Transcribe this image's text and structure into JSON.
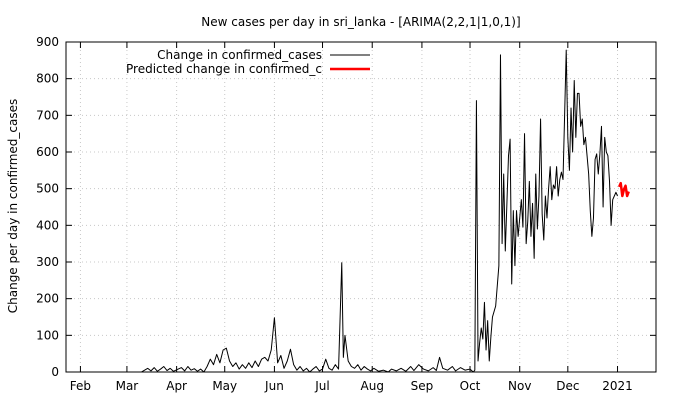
{
  "chart_data": {
    "type": "line",
    "title": "New cases per day in sri_lanka -  [ARIMA(2,2,1|1,0,1)]",
    "xlabel": "",
    "ylabel": "Change per day in confirmed_cases",
    "ylim": [
      0,
      900
    ],
    "yticks": [
      0,
      100,
      200,
      300,
      400,
      500,
      600,
      700,
      800,
      900
    ],
    "xlim": [
      "2020-01-23",
      "2021-01-25"
    ],
    "xticks": [
      {
        "label": "Feb",
        "date": "2020-02-01"
      },
      {
        "label": "Mar",
        "date": "2020-03-01"
      },
      {
        "label": "Apr",
        "date": "2020-04-01"
      },
      {
        "label": "May",
        "date": "2020-05-01"
      },
      {
        "label": "Jun",
        "date": "2020-06-01"
      },
      {
        "label": "Jul",
        "date": "2020-07-01"
      },
      {
        "label": "Aug",
        "date": "2020-08-01"
      },
      {
        "label": "Sep",
        "date": "2020-09-01"
      },
      {
        "label": "Oct",
        "date": "2020-10-01"
      },
      {
        "label": "Nov",
        "date": "2020-11-01"
      },
      {
        "label": "Dec",
        "date": "2020-12-01"
      },
      {
        "label": "2021",
        "date": "2021-01-01"
      }
    ],
    "grid": true,
    "legend_position": "top-left",
    "series": [
      {
        "name": "Change in confirmed_cases",
        "color": "#000000",
        "points": [
          [
            "2020-01-23",
            0
          ],
          [
            "2020-03-10",
            0
          ],
          [
            "2020-03-12",
            5
          ],
          [
            "2020-03-14",
            10
          ],
          [
            "2020-03-16",
            3
          ],
          [
            "2020-03-18",
            12
          ],
          [
            "2020-03-20",
            2
          ],
          [
            "2020-03-22",
            8
          ],
          [
            "2020-03-24",
            15
          ],
          [
            "2020-03-26",
            4
          ],
          [
            "2020-03-28",
            10
          ],
          [
            "2020-03-30",
            2
          ],
          [
            "2020-04-01",
            6
          ],
          [
            "2020-04-04",
            12
          ],
          [
            "2020-04-06",
            3
          ],
          [
            "2020-04-08",
            15
          ],
          [
            "2020-04-10",
            5
          ],
          [
            "2020-04-12",
            9
          ],
          [
            "2020-04-14",
            2
          ],
          [
            "2020-04-16",
            8
          ],
          [
            "2020-04-18",
            0
          ],
          [
            "2020-04-20",
            15
          ],
          [
            "2020-04-22",
            35
          ],
          [
            "2020-04-24",
            20
          ],
          [
            "2020-04-26",
            48
          ],
          [
            "2020-04-28",
            25
          ],
          [
            "2020-04-30",
            60
          ],
          [
            "2020-05-02",
            65
          ],
          [
            "2020-05-04",
            30
          ],
          [
            "2020-05-06",
            15
          ],
          [
            "2020-05-08",
            25
          ],
          [
            "2020-05-10",
            8
          ],
          [
            "2020-05-12",
            20
          ],
          [
            "2020-05-14",
            10
          ],
          [
            "2020-05-16",
            25
          ],
          [
            "2020-05-18",
            12
          ],
          [
            "2020-05-20",
            30
          ],
          [
            "2020-05-22",
            15
          ],
          [
            "2020-05-24",
            35
          ],
          [
            "2020-05-26",
            40
          ],
          [
            "2020-05-28",
            30
          ],
          [
            "2020-05-30",
            60
          ],
          [
            "2020-06-01",
            148
          ],
          [
            "2020-06-03",
            25
          ],
          [
            "2020-06-05",
            45
          ],
          [
            "2020-06-07",
            10
          ],
          [
            "2020-06-09",
            30
          ],
          [
            "2020-06-11",
            62
          ],
          [
            "2020-06-13",
            20
          ],
          [
            "2020-06-15",
            5
          ],
          [
            "2020-06-17",
            15
          ],
          [
            "2020-06-19",
            3
          ],
          [
            "2020-06-21",
            10
          ],
          [
            "2020-06-23",
            0
          ],
          [
            "2020-06-25",
            8
          ],
          [
            "2020-06-27",
            15
          ],
          [
            "2020-06-29",
            3
          ],
          [
            "2020-07-01",
            8
          ],
          [
            "2020-07-03",
            35
          ],
          [
            "2020-07-05",
            10
          ],
          [
            "2020-07-07",
            5
          ],
          [
            "2020-07-09",
            20
          ],
          [
            "2020-07-11",
            8
          ],
          [
            "2020-07-13",
            298
          ],
          [
            "2020-07-14",
            40
          ],
          [
            "2020-07-15",
            100
          ],
          [
            "2020-07-17",
            30
          ],
          [
            "2020-07-19",
            15
          ],
          [
            "2020-07-21",
            10
          ],
          [
            "2020-07-23",
            20
          ],
          [
            "2020-07-25",
            5
          ],
          [
            "2020-07-27",
            15
          ],
          [
            "2020-07-29",
            8
          ],
          [
            "2020-07-31",
            3
          ],
          [
            "2020-08-02",
            10
          ],
          [
            "2020-08-05",
            2
          ],
          [
            "2020-08-08",
            5
          ],
          [
            "2020-08-11",
            0
          ],
          [
            "2020-08-13",
            8
          ],
          [
            "2020-08-16",
            3
          ],
          [
            "2020-08-19",
            10
          ],
          [
            "2020-08-22",
            2
          ],
          [
            "2020-08-25",
            15
          ],
          [
            "2020-08-27",
            4
          ],
          [
            "2020-08-30",
            20
          ],
          [
            "2020-09-02",
            8
          ],
          [
            "2020-09-05",
            3
          ],
          [
            "2020-09-08",
            12
          ],
          [
            "2020-09-10",
            4
          ],
          [
            "2020-09-12",
            40
          ],
          [
            "2020-09-14",
            10
          ],
          [
            "2020-09-17",
            5
          ],
          [
            "2020-09-20",
            15
          ],
          [
            "2020-09-22",
            3
          ],
          [
            "2020-09-25",
            12
          ],
          [
            "2020-09-28",
            5
          ],
          [
            "2020-10-01",
            8
          ],
          [
            "2020-10-03",
            0
          ],
          [
            "2020-10-04",
            5
          ],
          [
            "2020-10-05",
            740
          ],
          [
            "2020-10-06",
            30
          ],
          [
            "2020-10-07",
            80
          ],
          [
            "2020-10-08",
            120
          ],
          [
            "2020-10-09",
            90
          ],
          [
            "2020-10-10",
            190
          ],
          [
            "2020-10-11",
            60
          ],
          [
            "2020-10-12",
            140
          ],
          [
            "2020-10-13",
            30
          ],
          [
            "2020-10-14",
            95
          ],
          [
            "2020-10-15",
            150
          ],
          [
            "2020-10-17",
            180
          ],
          [
            "2020-10-19",
            290
          ],
          [
            "2020-10-20",
            865
          ],
          [
            "2020-10-21",
            350
          ],
          [
            "2020-10-22",
            540
          ],
          [
            "2020-10-23",
            330
          ],
          [
            "2020-10-24",
            460
          ],
          [
            "2020-10-25",
            590
          ],
          [
            "2020-10-26",
            635
          ],
          [
            "2020-10-27",
            240
          ],
          [
            "2020-10-28",
            440
          ],
          [
            "2020-10-29",
            290
          ],
          [
            "2020-10-30",
            440
          ],
          [
            "2020-10-31",
            370
          ],
          [
            "2020-11-01",
            420
          ],
          [
            "2020-11-02",
            470
          ],
          [
            "2020-11-03",
            395
          ],
          [
            "2020-11-04",
            650
          ],
          [
            "2020-11-05",
            350
          ],
          [
            "2020-11-06",
            410
          ],
          [
            "2020-11-07",
            520
          ],
          [
            "2020-11-08",
            370
          ],
          [
            "2020-11-09",
            460
          ],
          [
            "2020-11-10",
            310
          ],
          [
            "2020-11-11",
            540
          ],
          [
            "2020-11-12",
            390
          ],
          [
            "2020-11-13",
            480
          ],
          [
            "2020-11-14",
            690
          ],
          [
            "2020-11-15",
            430
          ],
          [
            "2020-11-16",
            360
          ],
          [
            "2020-11-17",
            480
          ],
          [
            "2020-11-18",
            420
          ],
          [
            "2020-11-19",
            500
          ],
          [
            "2020-11-20",
            560
          ],
          [
            "2020-11-21",
            470
          ],
          [
            "2020-11-22",
            510
          ],
          [
            "2020-11-23",
            500
          ],
          [
            "2020-11-24",
            560
          ],
          [
            "2020-11-25",
            480
          ],
          [
            "2020-11-26",
            525
          ],
          [
            "2020-11-27",
            545
          ],
          [
            "2020-11-28",
            525
          ],
          [
            "2020-11-29",
            700
          ],
          [
            "2020-11-30",
            878
          ],
          [
            "2020-12-01",
            640
          ],
          [
            "2020-12-02",
            550
          ],
          [
            "2020-12-03",
            720
          ],
          [
            "2020-12-04",
            600
          ],
          [
            "2020-12-05",
            795
          ],
          [
            "2020-12-06",
            640
          ],
          [
            "2020-12-07",
            760
          ],
          [
            "2020-12-08",
            760
          ],
          [
            "2020-12-09",
            670
          ],
          [
            "2020-12-10",
            690
          ],
          [
            "2020-12-11",
            620
          ],
          [
            "2020-12-12",
            640
          ],
          [
            "2020-12-13",
            590
          ],
          [
            "2020-12-14",
            540
          ],
          [
            "2020-12-15",
            440
          ],
          [
            "2020-12-16",
            370
          ],
          [
            "2020-12-17",
            420
          ],
          [
            "2020-12-18",
            580
          ],
          [
            "2020-12-19",
            595
          ],
          [
            "2020-12-20",
            540
          ],
          [
            "2020-12-21",
            595
          ],
          [
            "2020-12-22",
            670
          ],
          [
            "2020-12-23",
            450
          ],
          [
            "2020-12-24",
            640
          ],
          [
            "2020-12-25",
            600
          ],
          [
            "2020-12-26",
            590
          ],
          [
            "2020-12-27",
            520
          ],
          [
            "2020-12-28",
            400
          ],
          [
            "2020-12-29",
            470
          ],
          [
            "2020-12-30",
            480
          ],
          [
            "2020-12-31",
            490
          ],
          [
            "2021-01-01",
            480
          ]
        ]
      },
      {
        "name": "Predicted change in confirmed_c",
        "color": "#ff0000",
        "points": [
          [
            "2021-01-02",
            505
          ],
          [
            "2021-01-03",
            515
          ],
          [
            "2021-01-04",
            480
          ],
          [
            "2021-01-05",
            498
          ],
          [
            "2021-01-06",
            508
          ],
          [
            "2021-01-07",
            480
          ],
          [
            "2021-01-08",
            492
          ]
        ]
      }
    ]
  }
}
